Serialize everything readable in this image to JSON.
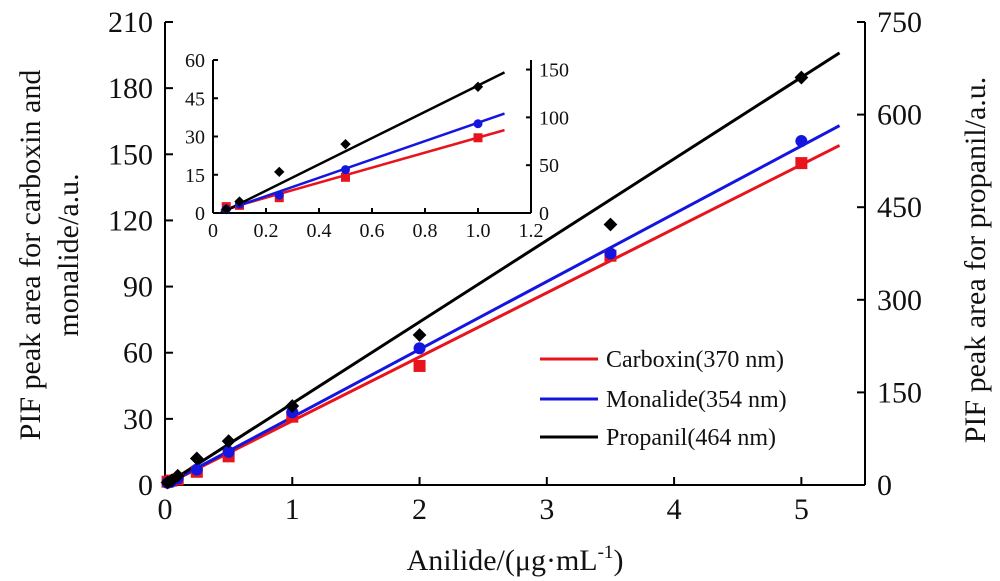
{
  "chart_data": [
    {
      "type": "scatter",
      "panel": "main",
      "xlabel": "Anilide/(μg·mL",
      "xlabel_sup": "-1",
      "xlabel_end": ")",
      "ylabel_left_line1": "PIF peak area for carboxin and",
      "ylabel_left_line2": "monalide/a.u.",
      "ylabel_right": "PIF peak area for propanil/a.u.",
      "xlim": [
        0,
        5.5
      ],
      "ylim_left": [
        0,
        210
      ],
      "ylim_right": [
        0,
        750
      ],
      "x_ticks": [
        0,
        1,
        2,
        3,
        4,
        5
      ],
      "y_ticks_left": [
        0,
        30,
        60,
        90,
        120,
        150,
        180,
        210
      ],
      "y_ticks_right": [
        0,
        150,
        300,
        450,
        600,
        750
      ],
      "legend_position": "lower-right",
      "series": [
        {
          "name": "Carboxin(370 nm)",
          "color": "#e8141c",
          "marker": "square",
          "axis": "left",
          "x": [
            0.02,
            0.05,
            0.1,
            0.25,
            0.5,
            1,
            2,
            3.5,
            5
          ],
          "y": [
            1.5,
            2,
            2.5,
            6,
            13,
            31,
            54,
            104,
            146
          ],
          "fit": {
            "x": [
              0,
              5.3
            ],
            "y": [
              0,
              154
            ]
          }
        },
        {
          "name": "Monalide(354 nm)",
          "color": "#1515e0",
          "marker": "circle",
          "axis": "left",
          "x": [
            0.02,
            0.05,
            0.1,
            0.25,
            0.5,
            1,
            2,
            3.5,
            5
          ],
          "y": [
            1,
            1.5,
            3,
            7,
            15,
            33,
            62,
            105,
            156
          ],
          "fit": {
            "x": [
              0,
              5.3
            ],
            "y": [
              0,
              163
            ]
          }
        },
        {
          "name": "Propanil(464 nm)",
          "color": "#000000",
          "marker": "diamond",
          "axis": "right",
          "x": [
            0.02,
            0.05,
            0.1,
            0.25,
            0.5,
            1,
            2,
            3.5,
            5
          ],
          "y": [
            4,
            7,
            15,
            43,
            71,
            128,
            243,
            422,
            660
          ],
          "fit": {
            "x": [
              0,
              5.3
            ],
            "y": [
              0,
              700
            ]
          }
        }
      ]
    },
    {
      "type": "scatter",
      "panel": "inset",
      "xlim": [
        0,
        1.2
      ],
      "ylim_left": [
        0,
        60
      ],
      "ylim_right": [
        0,
        160
      ],
      "x_ticks": [
        0,
        0.2,
        0.4,
        0.6,
        0.8,
        1.0,
        1.2
      ],
      "x_tick_labels": [
        "0",
        "0.2",
        "0.4",
        "0.6",
        "0.8",
        "1.0",
        "1.2"
      ],
      "y_ticks_left": [
        0,
        15,
        30,
        45,
        60
      ],
      "y_ticks_right": [
        0,
        50,
        100,
        150
      ],
      "series": [
        {
          "name": "Carboxin(370 nm)",
          "color": "#e8141c",
          "marker": "square",
          "axis": "left",
          "x": [
            0.05,
            0.1,
            0.25,
            0.5,
            1
          ],
          "y": [
            2.5,
            3,
            6,
            14,
            29.5
          ],
          "fit": {
            "x": [
              0.03,
              1.1
            ],
            "y": [
              1,
              32.5
            ]
          }
        },
        {
          "name": "Monalide(354 nm)",
          "color": "#1515e0",
          "marker": "circle",
          "axis": "left",
          "x": [
            0.05,
            0.1,
            0.25,
            0.5,
            1
          ],
          "y": [
            1.5,
            3.5,
            7,
            17,
            35
          ],
          "fit": {
            "x": [
              0.03,
              1.1
            ],
            "y": [
              0.5,
              39
            ]
          }
        },
        {
          "name": "Propanil(464 nm)",
          "color": "#000000",
          "marker": "diamond",
          "axis": "right",
          "x": [
            0.05,
            0.1,
            0.25,
            0.5,
            1
          ],
          "y": [
            4,
            12,
            43,
            72,
            132
          ],
          "fit": {
            "x": [
              0.03,
              1.1
            ],
            "y": [
              0,
              147
            ]
          }
        }
      ]
    }
  ]
}
